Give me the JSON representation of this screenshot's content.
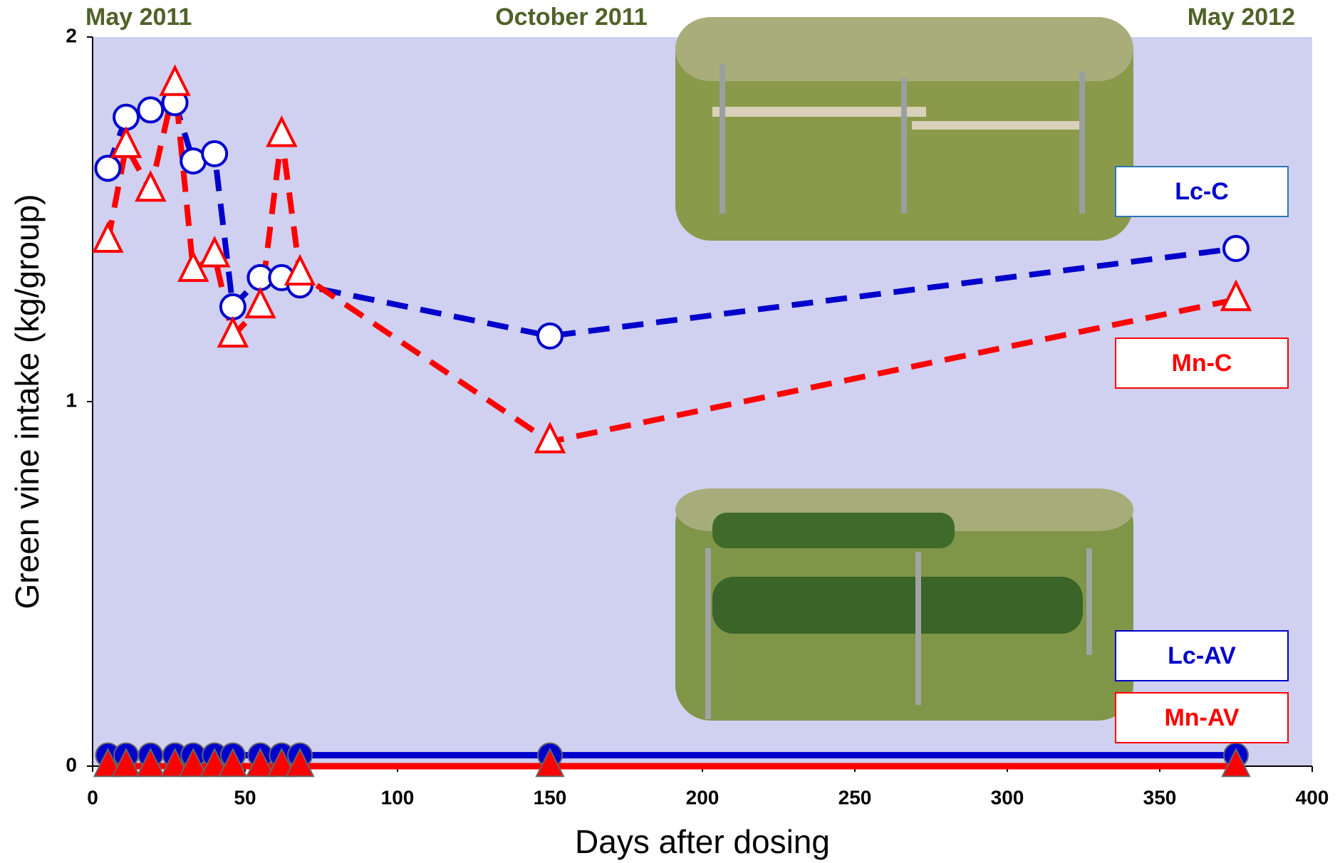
{
  "chart_data": {
    "type": "line",
    "xlabel": "Days after dosing",
    "ylabel": "Green vine intake (kg/group)",
    "annotations": [
      "May 2011",
      "October 2011",
      "May 2012"
    ],
    "x": [
      5,
      11,
      19,
      27,
      33,
      40,
      46,
      55,
      62,
      68,
      150,
      375
    ],
    "xlim": [
      0,
      400
    ],
    "xticks": [
      0,
      50,
      100,
      150,
      200,
      250,
      300,
      350,
      400
    ],
    "ylim": [
      0,
      2
    ],
    "yticks": [
      0,
      1,
      2
    ],
    "background": "#d0d0f0",
    "series": [
      {
        "name": "Lc-C",
        "color": "#0000cc",
        "marker": "circle",
        "filled": false,
        "dashed": true,
        "values": [
          1.64,
          1.78,
          1.8,
          1.82,
          1.66,
          1.68,
          1.26,
          1.34,
          1.34,
          1.32,
          1.18,
          1.42
        ]
      },
      {
        "name": "Mn-C",
        "color": "#ff0000",
        "marker": "triangle",
        "filled": false,
        "dashed": true,
        "values": [
          1.44,
          1.7,
          1.58,
          1.87,
          1.36,
          1.4,
          1.18,
          1.26,
          1.73,
          1.35,
          0.89,
          1.28
        ]
      },
      {
        "name": "Lc-AV",
        "color": "#0000cc",
        "marker": "circle",
        "filled": true,
        "dashed": false,
        "values": [
          0.03,
          0.03,
          0.03,
          0.03,
          0.03,
          0.03,
          0.03,
          0.03,
          0.03,
          0.03,
          0.03,
          0.03
        ]
      },
      {
        "name": "Mn-AV",
        "color": "#ff0000",
        "marker": "triangle",
        "filled": true,
        "dashed": false,
        "values": [
          0,
          0,
          0,
          0,
          0,
          0,
          0,
          0,
          0,
          0,
          0,
          0
        ]
      }
    ]
  }
}
